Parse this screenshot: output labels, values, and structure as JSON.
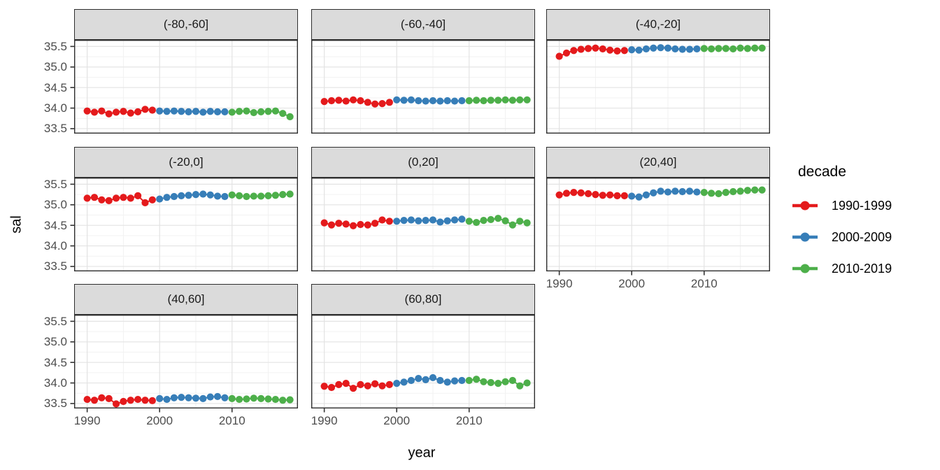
{
  "figure": {
    "x_axis_title": "year",
    "y_axis_title": "sal"
  },
  "legend": {
    "title": "decade",
    "entries": [
      {
        "label": "1990-1999",
        "color": "#E41A1C"
      },
      {
        "label": "2000-2009",
        "color": "#377EB8"
      },
      {
        "label": "2010-2019",
        "color": "#4DAF4A"
      }
    ]
  },
  "chart_data": {
    "type": "scatter",
    "title": "",
    "xlabel": "year",
    "ylabel": "sal",
    "legend_title": "decade",
    "legend_position": "right",
    "grid": "on",
    "x_domain": [
      1988.2,
      2019.1
    ],
    "y_domain": [
      33.38,
      35.66
    ],
    "x_ticks": [
      {
        "value": 1990,
        "label": "1990"
      },
      {
        "value": 2000,
        "label": "2000"
      },
      {
        "value": 2010,
        "label": "2010"
      }
    ],
    "x_minor": [
      1995,
      2005,
      2015
    ],
    "y_ticks": [
      {
        "value": 35.5,
        "label": "35.5"
      },
      {
        "value": 35.0,
        "label": "35.0"
      },
      {
        "value": 34.5,
        "label": "34.5"
      },
      {
        "value": 34.0,
        "label": "34.0"
      },
      {
        "value": 33.5,
        "label": "33.5"
      }
    ],
    "y_minor": [
      33.75,
      34.25,
      34.75,
      35.25
    ],
    "series": [
      {
        "name": "1990-1999",
        "color": "#E41A1C",
        "years": [
          1990,
          1991,
          1992,
          1993,
          1994,
          1995,
          1996,
          1997,
          1998,
          1999
        ]
      },
      {
        "name": "2000-2009",
        "color": "#377EB8",
        "years": [
          2000,
          2001,
          2002,
          2003,
          2004,
          2005,
          2006,
          2007,
          2008,
          2009
        ]
      },
      {
        "name": "2010-2019",
        "color": "#4DAF4A",
        "years": [
          2010,
          2011,
          2012,
          2013,
          2014,
          2015,
          2016,
          2017,
          2018
        ]
      }
    ],
    "facets": [
      {
        "label": "(-80,-60]",
        "values": {
          "1990-1999": [
            33.93,
            33.9,
            33.93,
            33.86,
            33.9,
            33.92,
            33.88,
            33.91,
            33.97,
            33.95
          ],
          "2000-2009": [
            33.93,
            33.92,
            33.93,
            33.92,
            33.91,
            33.92,
            33.9,
            33.92,
            33.91,
            33.91
          ],
          "2010-2019": [
            33.9,
            33.92,
            33.93,
            33.89,
            33.91,
            33.92,
            33.93,
            33.87,
            33.79
          ]
        }
      },
      {
        "label": "(-60,-40]",
        "values": {
          "1990-1999": [
            34.16,
            34.18,
            34.19,
            34.17,
            34.2,
            34.18,
            34.14,
            34.1,
            34.11,
            34.14
          ],
          "2000-2009": [
            34.2,
            34.19,
            34.2,
            34.18,
            34.17,
            34.18,
            34.17,
            34.18,
            34.17,
            34.18
          ],
          "2010-2019": [
            34.18,
            34.19,
            34.18,
            34.19,
            34.19,
            34.2,
            34.19,
            34.2,
            34.2
          ]
        }
      },
      {
        "label": "(-40,-20]",
        "values": {
          "1990-1999": [
            35.26,
            35.34,
            35.4,
            35.43,
            35.45,
            35.46,
            35.44,
            35.41,
            35.39,
            35.4
          ],
          "2000-2009": [
            35.42,
            35.41,
            35.44,
            35.46,
            35.47,
            35.46,
            35.44,
            35.43,
            35.43,
            35.44
          ],
          "2010-2019": [
            35.45,
            35.44,
            35.45,
            35.45,
            35.44,
            35.46,
            35.45,
            35.46,
            35.46
          ]
        }
      },
      {
        "label": "(-20,0]",
        "values": {
          "1990-1999": [
            35.16,
            35.18,
            35.12,
            35.1,
            35.16,
            35.18,
            35.16,
            35.22,
            35.05,
            35.12
          ],
          "2000-2009": [
            35.14,
            35.18,
            35.2,
            35.22,
            35.23,
            35.25,
            35.26,
            35.24,
            35.21,
            35.2
          ],
          "2010-2019": [
            35.24,
            35.22,
            35.2,
            35.21,
            35.21,
            35.22,
            35.23,
            35.25,
            35.26
          ]
        }
      },
      {
        "label": "(0,20]",
        "values": {
          "1990-1999": [
            34.56,
            34.51,
            34.55,
            34.53,
            34.49,
            34.52,
            34.51,
            34.55,
            34.63,
            34.6
          ],
          "2000-2009": [
            34.6,
            34.62,
            34.63,
            34.61,
            34.62,
            34.63,
            34.58,
            34.61,
            34.63,
            34.65
          ],
          "2010-2019": [
            34.6,
            34.57,
            34.62,
            34.64,
            34.67,
            34.61,
            34.51,
            34.6,
            34.56
          ]
        }
      },
      {
        "label": "(20,40]",
        "values": {
          "1990-1999": [
            35.24,
            35.28,
            35.3,
            35.29,
            35.27,
            35.25,
            35.23,
            35.24,
            35.22,
            35.22
          ],
          "2000-2009": [
            35.21,
            35.19,
            35.24,
            35.29,
            35.33,
            35.31,
            35.33,
            35.32,
            35.33,
            35.31
          ],
          "2010-2019": [
            35.3,
            35.28,
            35.27,
            35.3,
            35.32,
            35.33,
            35.35,
            35.36,
            35.36
          ]
        }
      },
      {
        "label": "(40,60]",
        "values": {
          "1990-1999": [
            33.6,
            33.58,
            33.64,
            33.62,
            33.49,
            33.55,
            33.58,
            33.6,
            33.58,
            33.57
          ],
          "2000-2009": [
            33.62,
            33.6,
            33.64,
            33.65,
            33.64,
            33.63,
            33.62,
            33.66,
            33.67,
            33.64
          ],
          "2010-2019": [
            33.62,
            33.6,
            33.61,
            33.63,
            33.62,
            33.61,
            33.6,
            33.58,
            33.59
          ]
        }
      },
      {
        "label": "(60,80]",
        "values": {
          "1990-1999": [
            33.92,
            33.89,
            33.96,
            33.99,
            33.87,
            33.96,
            33.93,
            33.98,
            33.93,
            33.96
          ],
          "2000-2009": [
            33.99,
            34.02,
            34.06,
            34.11,
            34.08,
            34.13,
            34.06,
            34.02,
            34.05,
            34.06
          ],
          "2010-2019": [
            34.06,
            34.09,
            34.03,
            34.01,
            33.99,
            34.03,
            34.06,
            33.93,
            34.0
          ]
        }
      }
    ]
  }
}
